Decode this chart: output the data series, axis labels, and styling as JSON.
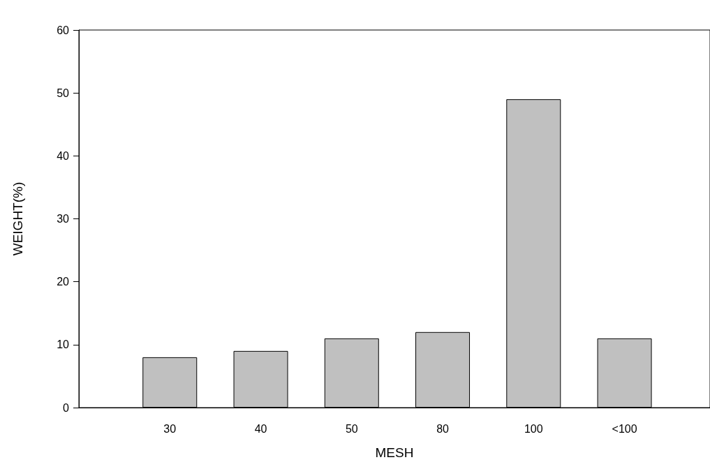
{
  "chart_data": {
    "type": "bar",
    "xlabel": "MESH",
    "ylabel": "WEIGHT(%)",
    "categories": [
      "30",
      "40",
      "50",
      "80",
      "100",
      "<100"
    ],
    "values": [
      8,
      9,
      11,
      12,
      49,
      11
    ],
    "color": "#c0c0c0",
    "ylim": [
      0,
      60
    ],
    "yticks": [
      0,
      10,
      20,
      30,
      40,
      50,
      60
    ],
    "grid": false
  }
}
